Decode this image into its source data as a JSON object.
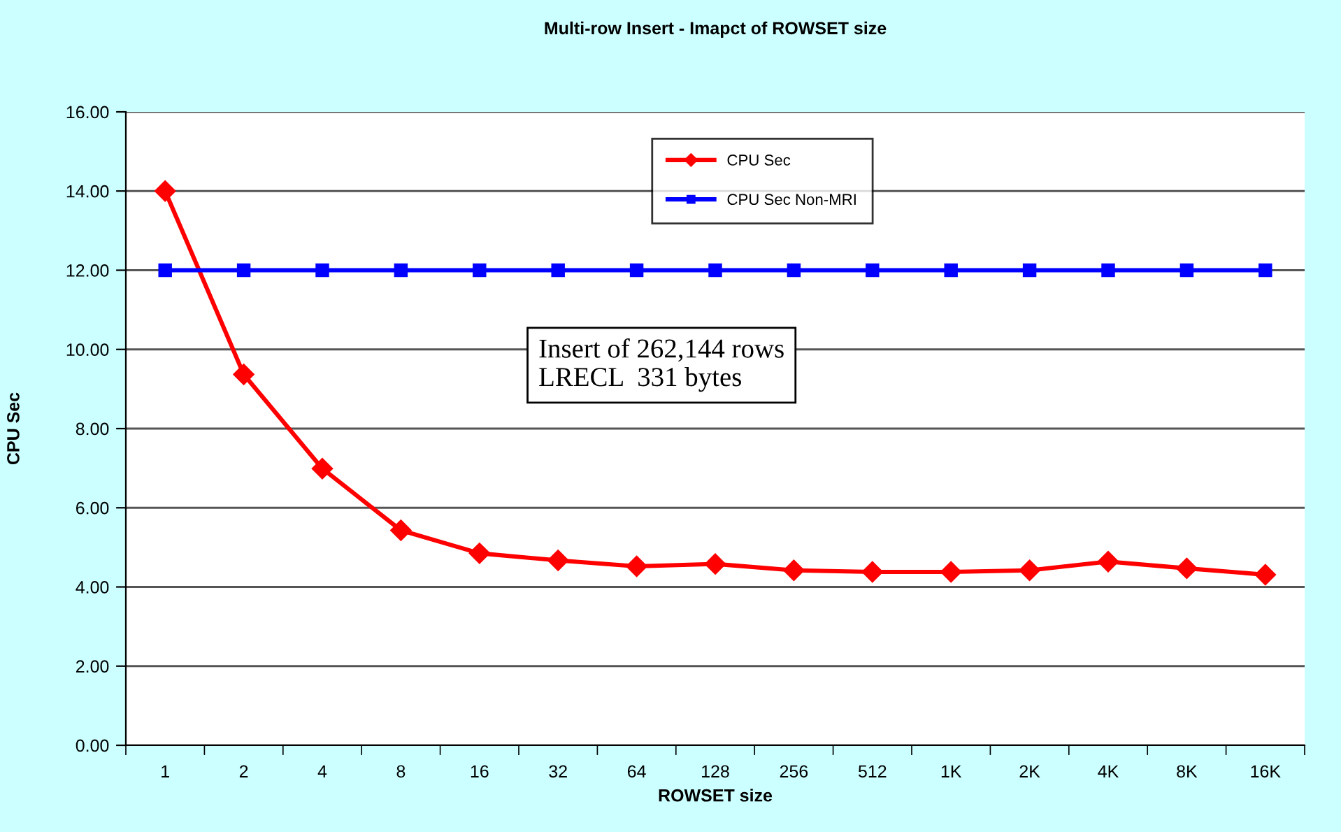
{
  "chart_data": {
    "type": "line",
    "title": "Multi-row Insert - Imapct of ROWSET size",
    "xlabel": "ROWSET size",
    "ylabel": "CPU Sec",
    "categories": [
      "1",
      "2",
      "4",
      "8",
      "16",
      "32",
      "64",
      "128",
      "256",
      "512",
      "1K",
      "2K",
      "4K",
      "8K",
      "16K"
    ],
    "series": [
      {
        "name": "CPU Sec",
        "color": "#ff0000",
        "marker": "diamond",
        "values": [
          14.0,
          9.37,
          6.99,
          5.43,
          4.85,
          4.67,
          4.52,
          4.58,
          4.42,
          4.38,
          4.38,
          4.42,
          4.64,
          4.47,
          4.31
        ]
      },
      {
        "name": "CPU Sec Non-MRI",
        "color": "#0000ff",
        "marker": "square",
        "values": [
          12.0,
          12.0,
          12.0,
          12.0,
          12.0,
          12.0,
          12.0,
          12.0,
          12.0,
          12.0,
          12.0,
          12.0,
          12.0,
          12.0,
          12.0
        ]
      }
    ],
    "ylim": [
      0,
      16
    ],
    "yticks": [
      {
        "value": 0,
        "label": "0.00"
      },
      {
        "value": 2,
        "label": "2.00"
      },
      {
        "value": 4,
        "label": "4.00"
      },
      {
        "value": 6,
        "label": "6.00"
      },
      {
        "value": 8,
        "label": "8.00"
      },
      {
        "value": 10,
        "label": "10.00"
      },
      {
        "value": 12,
        "label": "12.00"
      },
      {
        "value": 14,
        "label": "14.00"
      },
      {
        "value": 16,
        "label": "16.00"
      }
    ],
    "grid": "y",
    "legend": "top",
    "line_style": "solid",
    "annotations": [
      "Insert of 262,144 rows\nLRECL  331 bytes"
    ]
  }
}
